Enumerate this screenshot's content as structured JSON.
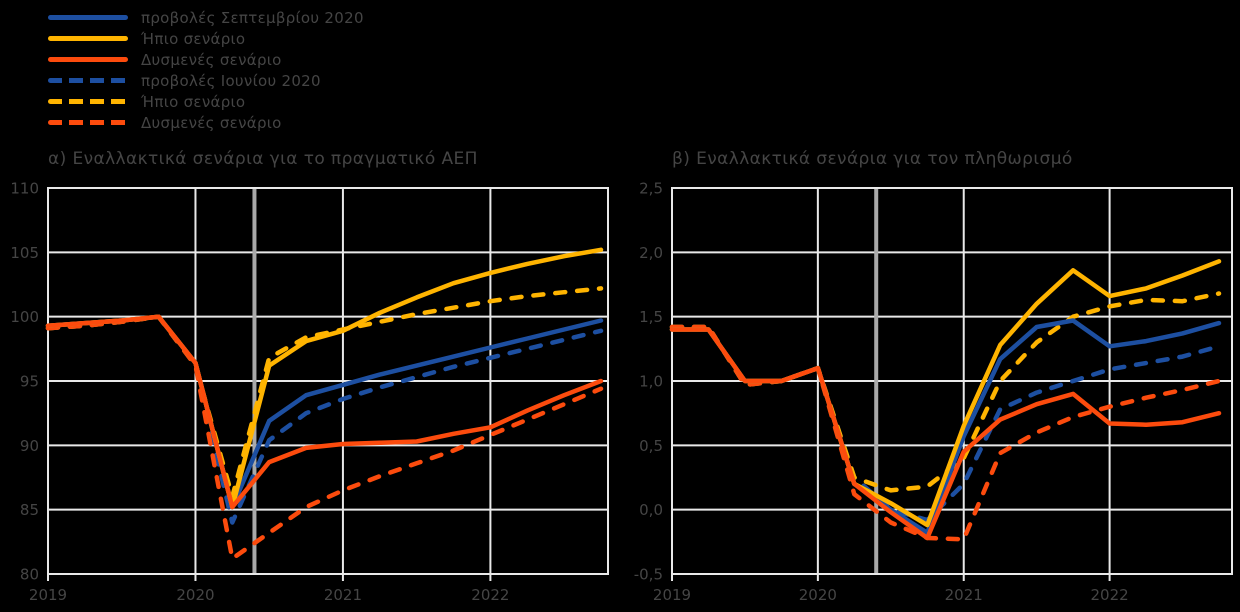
{
  "palette": {
    "blue": "#1d4fa1",
    "yellow": "#ffb400",
    "orange": "#fc4b0d",
    "gridline": "#e9e9e9",
    "divider": "#a9a9a9",
    "text": "#454545",
    "background": "#000000"
  },
  "legend": {
    "items": [
      {
        "label": "προβολές Σεπτεμβρίου 2020",
        "color": "blue",
        "dash": false
      },
      {
        "label": "Ήπιο σενάριο",
        "color": "yellow",
        "dash": false
      },
      {
        "label": "Δυσμενές σενάριο",
        "color": "orange",
        "dash": false
      },
      {
        "label": "προβολές Ιουνίου 2020",
        "color": "blue",
        "dash": true
      },
      {
        "label": "Ήπιο σενάριο",
        "color": "yellow",
        "dash": true
      },
      {
        "label": "Δυσμενές σενάριο",
        "color": "orange",
        "dash": true
      }
    ]
  },
  "chart_data": [
    {
      "type": "line",
      "title": "α) Εναλλακτικά σενάρια για το πραγματικό ΑΕΠ",
      "x": [
        "2019Q1",
        "2019Q2",
        "2019Q3",
        "2019Q4",
        "2020Q1",
        "2020Q2",
        "2020Q3",
        "2020Q4",
        "2021Q1",
        "2021Q2",
        "2021Q3",
        "2021Q4",
        "2022Q1",
        "2022Q2",
        "2022Q3",
        "2022Q4"
      ],
      "year_labels": [
        "2019",
        "2020",
        "2021",
        "2022"
      ],
      "ylim": [
        80,
        110
      ],
      "yticks": [
        80,
        85,
        90,
        95,
        100,
        105,
        110
      ],
      "ytick_labels": [
        "80",
        "85",
        "90",
        "95",
        "100",
        "105",
        "110"
      ],
      "grid": true,
      "legend_position": "top-left-of-figure",
      "projection_start": "2020Q3",
      "series": [
        {
          "name": "προβολές Ιουνίου 2020",
          "color": "blue",
          "dash": true,
          "values": [
            99.1,
            99.3,
            99.6,
            100,
            96.2,
            84.0,
            90.4,
            92.5,
            93.6,
            94.5,
            95.3,
            96.1,
            96.8,
            97.5,
            98.2,
            98.9
          ]
        },
        {
          "name": "Ήπιο σενάριο",
          "color": "yellow",
          "dash": true,
          "values": [
            99.1,
            99.3,
            99.6,
            100,
            96.2,
            86.0,
            96.8,
            98.4,
            99.0,
            99.6,
            100.2,
            100.7,
            101.2,
            101.6,
            101.9,
            102.2
          ]
        },
        {
          "name": "Δυσμενές σενάριο",
          "color": "orange",
          "dash": true,
          "values": [
            99.1,
            99.3,
            99.6,
            100,
            96.2,
            81.2,
            83.2,
            85.2,
            86.5,
            87.6,
            88.6,
            89.6,
            90.8,
            92.0,
            93.2,
            94.4
          ]
        },
        {
          "name": "προβολές Σεπτεμβρίου 2020",
          "color": "blue",
          "dash": false,
          "values": [
            99.3,
            99.5,
            99.7,
            100,
            96.4,
            85.2,
            91.9,
            93.9,
            94.7,
            95.5,
            96.2,
            96.9,
            97.6,
            98.3,
            99.0,
            99.7
          ]
        },
        {
          "name": "Ήπιο σενάριο",
          "color": "yellow",
          "dash": false,
          "values": [
            99.3,
            99.5,
            99.7,
            100,
            96.4,
            85.2,
            96.2,
            98.1,
            98.9,
            100.3,
            101.5,
            102.6,
            103.4,
            104.1,
            104.7,
            105.2
          ]
        },
        {
          "name": "Δυσμενές σενάριο",
          "color": "orange",
          "dash": false,
          "values": [
            99.3,
            99.5,
            99.7,
            100,
            96.4,
            85.2,
            88.7,
            89.8,
            90.1,
            90.2,
            90.3,
            90.9,
            91.4,
            92.7,
            93.9,
            95.0
          ]
        }
      ]
    },
    {
      "type": "line",
      "title": "β) Εναλλακτικά σενάρια για τον πληθωρισμό",
      "x": [
        "2019Q1",
        "2019Q2",
        "2019Q3",
        "2019Q4",
        "2020Q1",
        "2020Q2",
        "2020Q3",
        "2020Q4",
        "2021Q1",
        "2021Q2",
        "2021Q3",
        "2021Q4",
        "2022Q1",
        "2022Q2",
        "2022Q3",
        "2022Q4"
      ],
      "year_labels": [
        "2019",
        "2020",
        "2021",
        "2022"
      ],
      "ylim": [
        -0.5,
        2.5
      ],
      "yticks": [
        -0.5,
        0,
        0.5,
        1,
        1.5,
        2,
        2.5
      ],
      "ytick_labels": [
        "-0,5",
        "0,0",
        "0,5",
        "1,0",
        "1,5",
        "2,0",
        "2,5"
      ],
      "grid": true,
      "legend_position": "top-left-of-figure",
      "projection_start": "2020Q3",
      "series": [
        {
          "name": "προβολές Ιουνίου 2020",
          "color": "blue",
          "dash": true,
          "values": [
            1.42,
            1.42,
            0.97,
            1.0,
            1.1,
            0.25,
            0.0,
            -0.08,
            0.2,
            0.78,
            0.91,
            1.0,
            1.09,
            1.14,
            1.19,
            1.27
          ]
        },
        {
          "name": "Ήπιο σενάριο",
          "color": "yellow",
          "dash": true,
          "values": [
            1.42,
            1.42,
            0.97,
            1.0,
            1.1,
            0.25,
            0.15,
            0.18,
            0.4,
            1.0,
            1.3,
            1.5,
            1.58,
            1.63,
            1.62,
            1.68
          ]
        },
        {
          "name": "Δυσμενές σενάριο",
          "color": "orange",
          "dash": true,
          "values": [
            1.42,
            1.42,
            0.97,
            1.0,
            1.1,
            0.12,
            -0.1,
            -0.22,
            -0.23,
            0.44,
            0.6,
            0.72,
            0.8,
            0.87,
            0.93,
            1.0
          ]
        },
        {
          "name": "προβολές Σεπτεμβρίου 2020",
          "color": "blue",
          "dash": false,
          "values": [
            1.4,
            1.4,
            1.0,
            1.0,
            1.1,
            0.2,
            0.0,
            -0.18,
            0.57,
            1.17,
            1.42,
            1.47,
            1.27,
            1.31,
            1.37,
            1.45
          ]
        },
        {
          "name": "Ήπιο σενάριο",
          "color": "yellow",
          "dash": false,
          "values": [
            1.4,
            1.4,
            1.0,
            1.0,
            1.1,
            0.2,
            0.05,
            -0.12,
            0.65,
            1.28,
            1.6,
            1.86,
            1.66,
            1.72,
            1.82,
            1.93
          ]
        },
        {
          "name": "Δυσμενές σενάριο",
          "color": "orange",
          "dash": false,
          "values": [
            1.4,
            1.4,
            1.0,
            1.0,
            1.1,
            0.2,
            -0.02,
            -0.22,
            0.45,
            0.7,
            0.82,
            0.9,
            0.67,
            0.66,
            0.68,
            0.75
          ]
        }
      ]
    }
  ]
}
